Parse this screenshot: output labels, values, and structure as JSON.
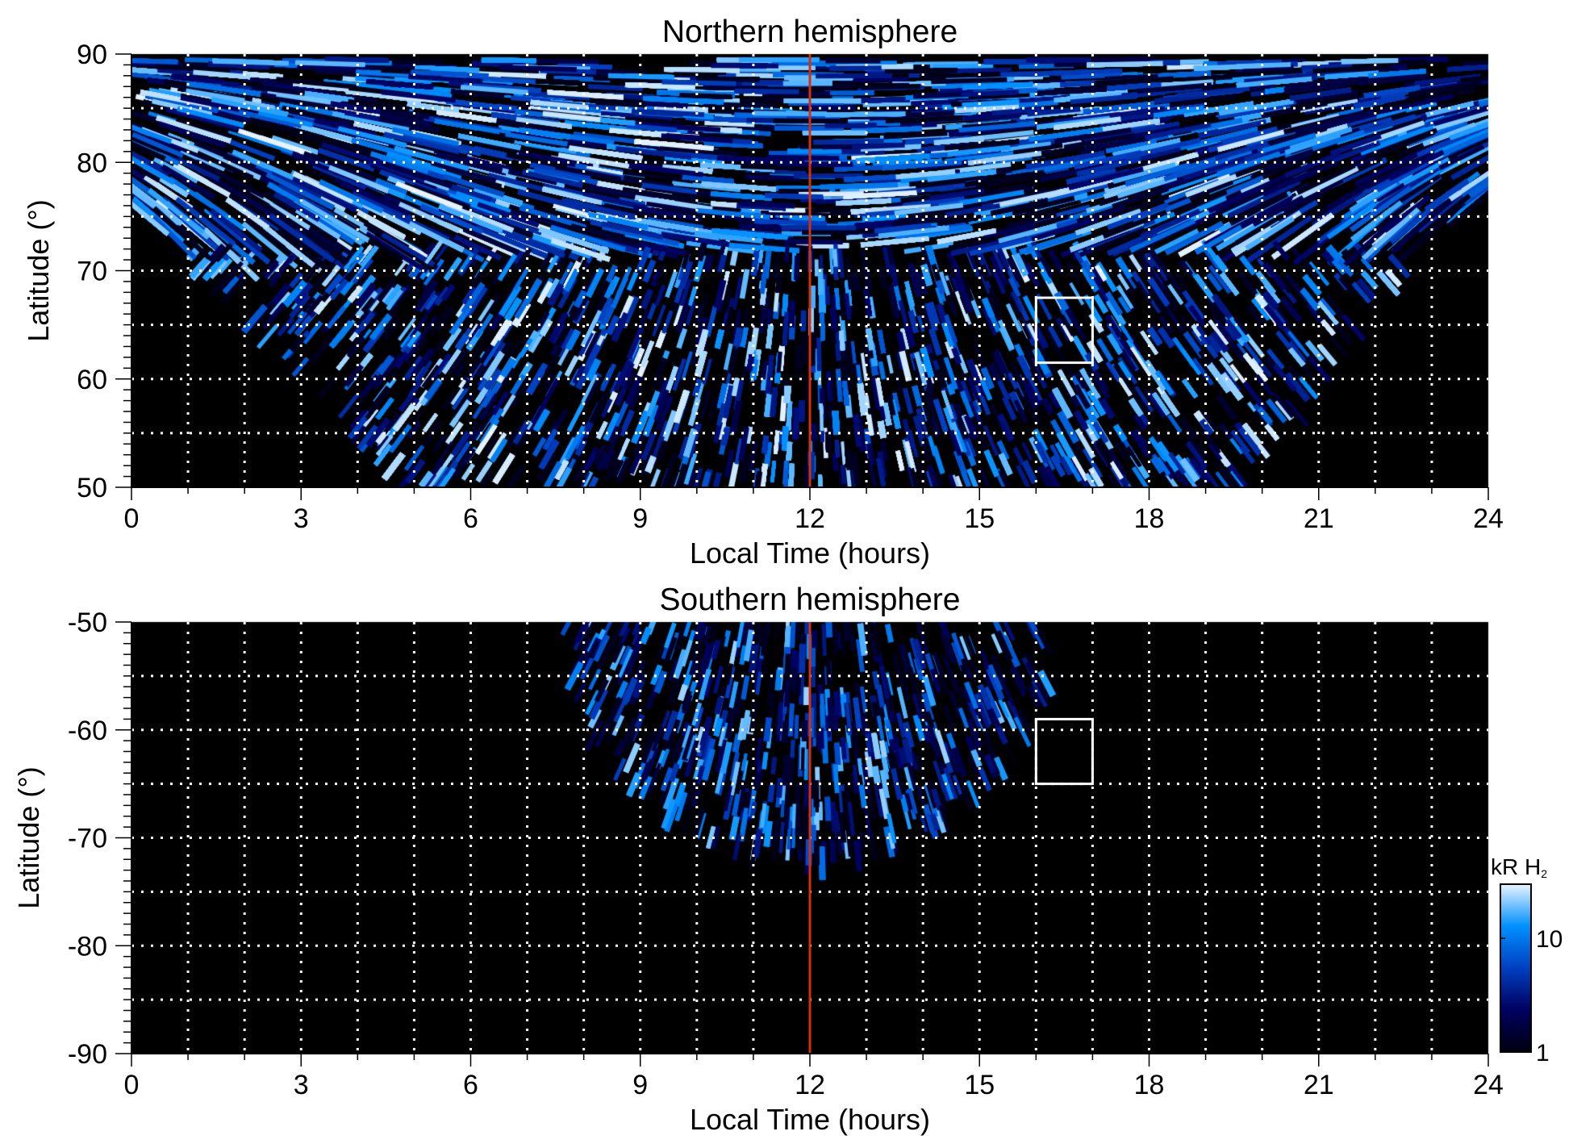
{
  "chart_data": {
    "type": "heatmap",
    "panels": [
      {
        "id": "north",
        "title": "Northern hemisphere",
        "xlabel": "Local Time (hours)",
        "ylabel": "Latitude (°)",
        "xlim": [
          0,
          24
        ],
        "ylim": [
          50,
          90
        ],
        "xticks": [
          0,
          3,
          6,
          9,
          12,
          15,
          18,
          21,
          24
        ],
        "yticks": [
          50,
          60,
          70,
          80,
          90
        ],
        "x_grid_step": 1,
        "y_grid_step": 5,
        "noon_line_lt": 12,
        "box": {
          "lt": [
            16,
            17
          ],
          "lat": [
            61.5,
            67.5
          ]
        },
        "coverage": "LT 0-24 above ~75°, narrowing to LT ~5-19.5 at 50°"
      },
      {
        "id": "south",
        "title": "Southern hemisphere",
        "xlabel": "Local Time (hours)",
        "ylabel": "Latitude (°)",
        "xlim": [
          0,
          24
        ],
        "ylim": [
          -90,
          -50
        ],
        "xticks": [
          0,
          3,
          6,
          9,
          12,
          15,
          18,
          21,
          24
        ],
        "yticks": [
          -50,
          -60,
          -70,
          -80,
          -90
        ],
        "x_grid_step": 1,
        "y_grid_step": 5,
        "noon_line_lt": 12,
        "box": {
          "lt": [
            16,
            17
          ],
          "lat": [
            -65,
            -59
          ]
        },
        "coverage": "LT ~7.7-16.3 at -50°, down to ~-72° near noon"
      }
    ],
    "colorbar": {
      "label": "kR H",
      "label_subscript": "2",
      "scale": "log",
      "range": [
        1,
        30
      ],
      "ticks": [
        "1",
        "10"
      ],
      "colors": [
        "#000010",
        "#000060",
        "#0040c0",
        "#0090ff",
        "#e8f4ff"
      ]
    },
    "colors": {
      "noon_line": "#d03010",
      "grid": "#ffffff",
      "background": "#000000"
    }
  }
}
